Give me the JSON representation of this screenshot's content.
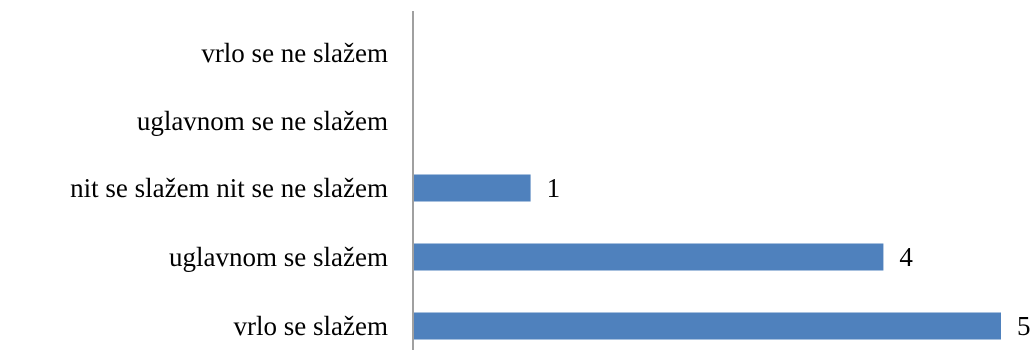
{
  "chart_data": {
    "type": "bar",
    "orientation": "horizontal",
    "categories": [
      "vrlo se ne slažem",
      "uglavnom se ne slažem",
      "nit se slažem nit se ne slažem",
      "uglavnom se slažem",
      "vrlo se slažem"
    ],
    "values": [
      0,
      0,
      1,
      4,
      5
    ],
    "data_labels": [
      "",
      "",
      "1",
      "4",
      "5"
    ],
    "xlim": [
      0,
      5
    ],
    "grid": false,
    "legend": "none",
    "colors": {
      "bar": "#4F81BD",
      "axis": "#808080",
      "text": "#000000"
    }
  }
}
